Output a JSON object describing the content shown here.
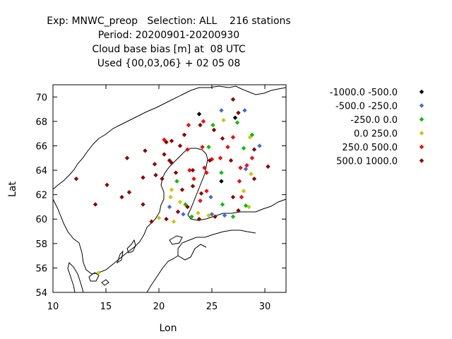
{
  "header": {
    "title_lines": [
      "Exp: MNWC_preop   Selection: ALL    216 stations",
      "Period: 20200901-20200930",
      "Cloud base bias [m] at  08 UTC",
      "Used {00,03,06} + 02 05 08"
    ]
  },
  "chart_data": {
    "type": "scatter",
    "title": "Exp: MNWC_preop   Selection: ALL    216 stations",
    "xlabel": "Lon",
    "ylabel": "Lat",
    "xlim": [
      10,
      32
    ],
    "ylim": [
      54,
      71
    ],
    "x_ticks": [
      10,
      15,
      20,
      25,
      30
    ],
    "y_ticks": [
      54,
      56,
      58,
      60,
      62,
      64,
      66,
      68,
      70
    ],
    "legend_position": "right",
    "series": [
      {
        "name": "-1000.0 -500.0",
        "color": "#000000",
        "points": [
          [
            23.8,
            68.6
          ],
          [
            27.2,
            68.3
          ],
          [
            25.9,
            63.1
          ]
        ]
      },
      {
        "name": "-500.0 -250.0",
        "color": "#4169e1",
        "points": [
          [
            25.9,
            68.9
          ],
          [
            28.1,
            68.9
          ],
          [
            29.5,
            66.0
          ],
          [
            28.2,
            64.1
          ],
          [
            22.3,
            60.4
          ],
          [
            21.0,
            61.0
          ],
          [
            24.9,
            61.8
          ],
          [
            25.0,
            60.4
          ],
          [
            26.2,
            60.3
          ]
        ]
      },
      {
        "name": "-250.0 0.0",
        "color": "#00c000",
        "points": [
          [
            27.4,
            67.9
          ],
          [
            25.1,
            67.7
          ],
          [
            28.8,
            66.9
          ],
          [
            24.7,
            65.9
          ],
          [
            28.0,
            65.8
          ],
          [
            25.9,
            63.8
          ],
          [
            21.7,
            63.1
          ],
          [
            23.1,
            60.2
          ],
          [
            22.5,
            61.2
          ],
          [
            28.2,
            61.1
          ],
          [
            27.0,
            60.2
          ],
          [
            26.0,
            61.2
          ]
        ]
      },
      {
        "name": "0.0 250.0",
        "color": "#c8c800",
        "points": [
          [
            26.1,
            68.1
          ],
          [
            28.6,
            66.7
          ],
          [
            28.7,
            63.7
          ],
          [
            21.2,
            62.4
          ],
          [
            28.0,
            62.3
          ],
          [
            21.1,
            61.8
          ],
          [
            22.0,
            61.4
          ],
          [
            23.7,
            60.5
          ],
          [
            24.7,
            60.3
          ],
          [
            20.0,
            60.1
          ],
          [
            21.4,
            59.8
          ],
          [
            28.5,
            61.0
          ],
          [
            14.3,
            55.6
          ]
        ]
      },
      {
        "name": "250.0 500.0",
        "color": "#ff0000",
        "points": [
          [
            22.8,
            67.7
          ],
          [
            24.2,
            68.0
          ],
          [
            20.5,
            66.5
          ],
          [
            22.7,
            65.7
          ],
          [
            24.1,
            65.9
          ],
          [
            26.5,
            65.9
          ],
          [
            27.0,
            66.7
          ],
          [
            25.8,
            65.0
          ],
          [
            28.8,
            65.0
          ],
          [
            25.0,
            64.9
          ],
          [
            22.9,
            64.0
          ],
          [
            24.3,
            64.2
          ],
          [
            27.7,
            64.2
          ],
          [
            28.3,
            64.4
          ],
          [
            24.5,
            63.8
          ],
          [
            23.3,
            63.3
          ],
          [
            27.6,
            63.1
          ],
          [
            24.5,
            62.3
          ],
          [
            27.8,
            61.8
          ],
          [
            23.9,
            61.5
          ]
        ]
      },
      {
        "name": "500.0 1000.0",
        "color": "#8b0000",
        "points": [
          [
            27.0,
            69.8
          ],
          [
            27.5,
            68.7
          ],
          [
            23.9,
            67.7
          ],
          [
            26.0,
            66.6
          ],
          [
            25.2,
            67.3
          ],
          [
            22.4,
            66.9
          ],
          [
            20.7,
            66.3
          ],
          [
            21.2,
            66.4
          ],
          [
            18.7,
            65.6
          ],
          [
            17.0,
            65.0
          ],
          [
            20.5,
            65.3
          ],
          [
            21.0,
            64.8
          ],
          [
            21.2,
            64.6
          ],
          [
            21.6,
            63.8
          ],
          [
            19.7,
            63.6
          ],
          [
            19.6,
            64.5
          ],
          [
            18.5,
            63.4
          ],
          [
            20.3,
            63.3
          ],
          [
            17.2,
            62.2
          ],
          [
            16.5,
            61.8
          ],
          [
            15.1,
            62.8
          ],
          [
            12.2,
            63.3
          ],
          [
            14.0,
            61.2
          ],
          [
            18.5,
            61.2
          ],
          [
            19.3,
            59.8
          ],
          [
            20.7,
            60.0
          ],
          [
            22.7,
            61.0
          ],
          [
            21.8,
            60.6
          ],
          [
            23.8,
            60.0
          ],
          [
            25.3,
            60.2
          ],
          [
            24.0,
            62.1
          ],
          [
            22.2,
            62.4
          ],
          [
            23.2,
            64.0
          ],
          [
            22.0,
            66.0
          ],
          [
            24.8,
            64.8
          ],
          [
            29.0,
            63.3
          ],
          [
            30.3,
            64.3
          ],
          [
            27.5,
            60.7
          ],
          [
            27.0,
            61.8
          ],
          [
            23.2,
            62.7
          ],
          [
            26.8,
            64.8
          ],
          [
            29.0,
            65.7
          ]
        ]
      }
    ]
  }
}
